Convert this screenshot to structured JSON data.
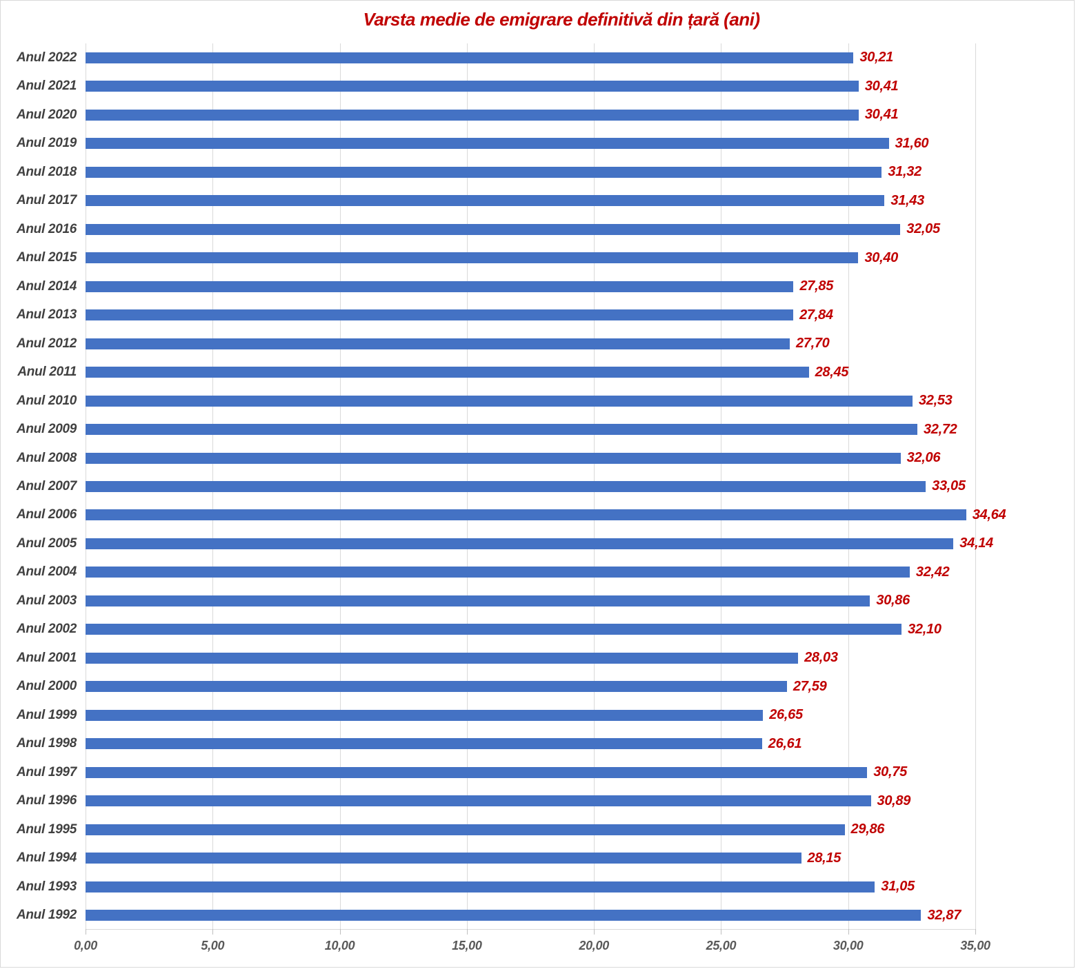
{
  "title": {
    "text": "Varsta medie de emigrare definitivă din țară (ani)",
    "color": "#c00000"
  },
  "chart_data": {
    "type": "bar",
    "orientation": "horizontal",
    "title": "Varsta medie de emigrare definitivă din țară (ani)",
    "xlabel": "",
    "ylabel": "",
    "xlim": [
      0,
      35
    ],
    "grid": "vertical",
    "legend": "none",
    "x_ticks": [
      0,
      5,
      10,
      15,
      20,
      25,
      30,
      35
    ],
    "x_tick_labels": [
      "0,00",
      "5,00",
      "10,00",
      "15,00",
      "20,00",
      "25,00",
      "30,00",
      "35,00"
    ],
    "categories": [
      "Anul 2022",
      "Anul 2021",
      "Anul 2020",
      "Anul 2019",
      "Anul 2018",
      "Anul 2017",
      "Anul 2016",
      "Anul 2015",
      "Anul 2014",
      "Anul 2013",
      "Anul 2012",
      "Anul 2011",
      "Anul 2010",
      "Anul 2009",
      "Anul 2008",
      "Anul 2007",
      "Anul 2006",
      "Anul 2005",
      "Anul 2004",
      "Anul 2003",
      "Anul 2002",
      "Anul 2001",
      "Anul 2000",
      "Anul 1999",
      "Anul 1998",
      "Anul 1997",
      "Anul 1996",
      "Anul 1995",
      "Anul 1994",
      "Anul 1993",
      "Anul 1992"
    ],
    "values": [
      30.21,
      30.41,
      30.41,
      31.6,
      31.32,
      31.43,
      32.05,
      30.4,
      27.85,
      27.84,
      27.7,
      28.45,
      32.53,
      32.72,
      32.06,
      33.05,
      34.64,
      34.14,
      32.42,
      30.86,
      32.1,
      28.03,
      27.59,
      26.65,
      26.61,
      30.75,
      30.89,
      29.86,
      28.15,
      31.05,
      32.87
    ],
    "value_labels": [
      "30,21",
      "30,41",
      "30,41",
      "31,60",
      "31,32",
      "31,43",
      "32,05",
      "30,40",
      "27,85",
      "27,84",
      "27,70",
      "28,45",
      "32,53",
      "32,72",
      "32,06",
      "33,05",
      "34,64",
      "34,14",
      "32,42",
      "30,86",
      "32,10",
      "28,03",
      "27,59",
      "26,65",
      "26,61",
      "30,75",
      "30,89",
      "29,86",
      "28,15",
      "31,05",
      "32,87"
    ],
    "colors": {
      "bar": "#4472c4",
      "value_label": "#c00000",
      "category_label": "#404040",
      "axis_tick_label": "#595959",
      "gridline": "#d9d9d9",
      "border": "#d9d9d9"
    }
  }
}
